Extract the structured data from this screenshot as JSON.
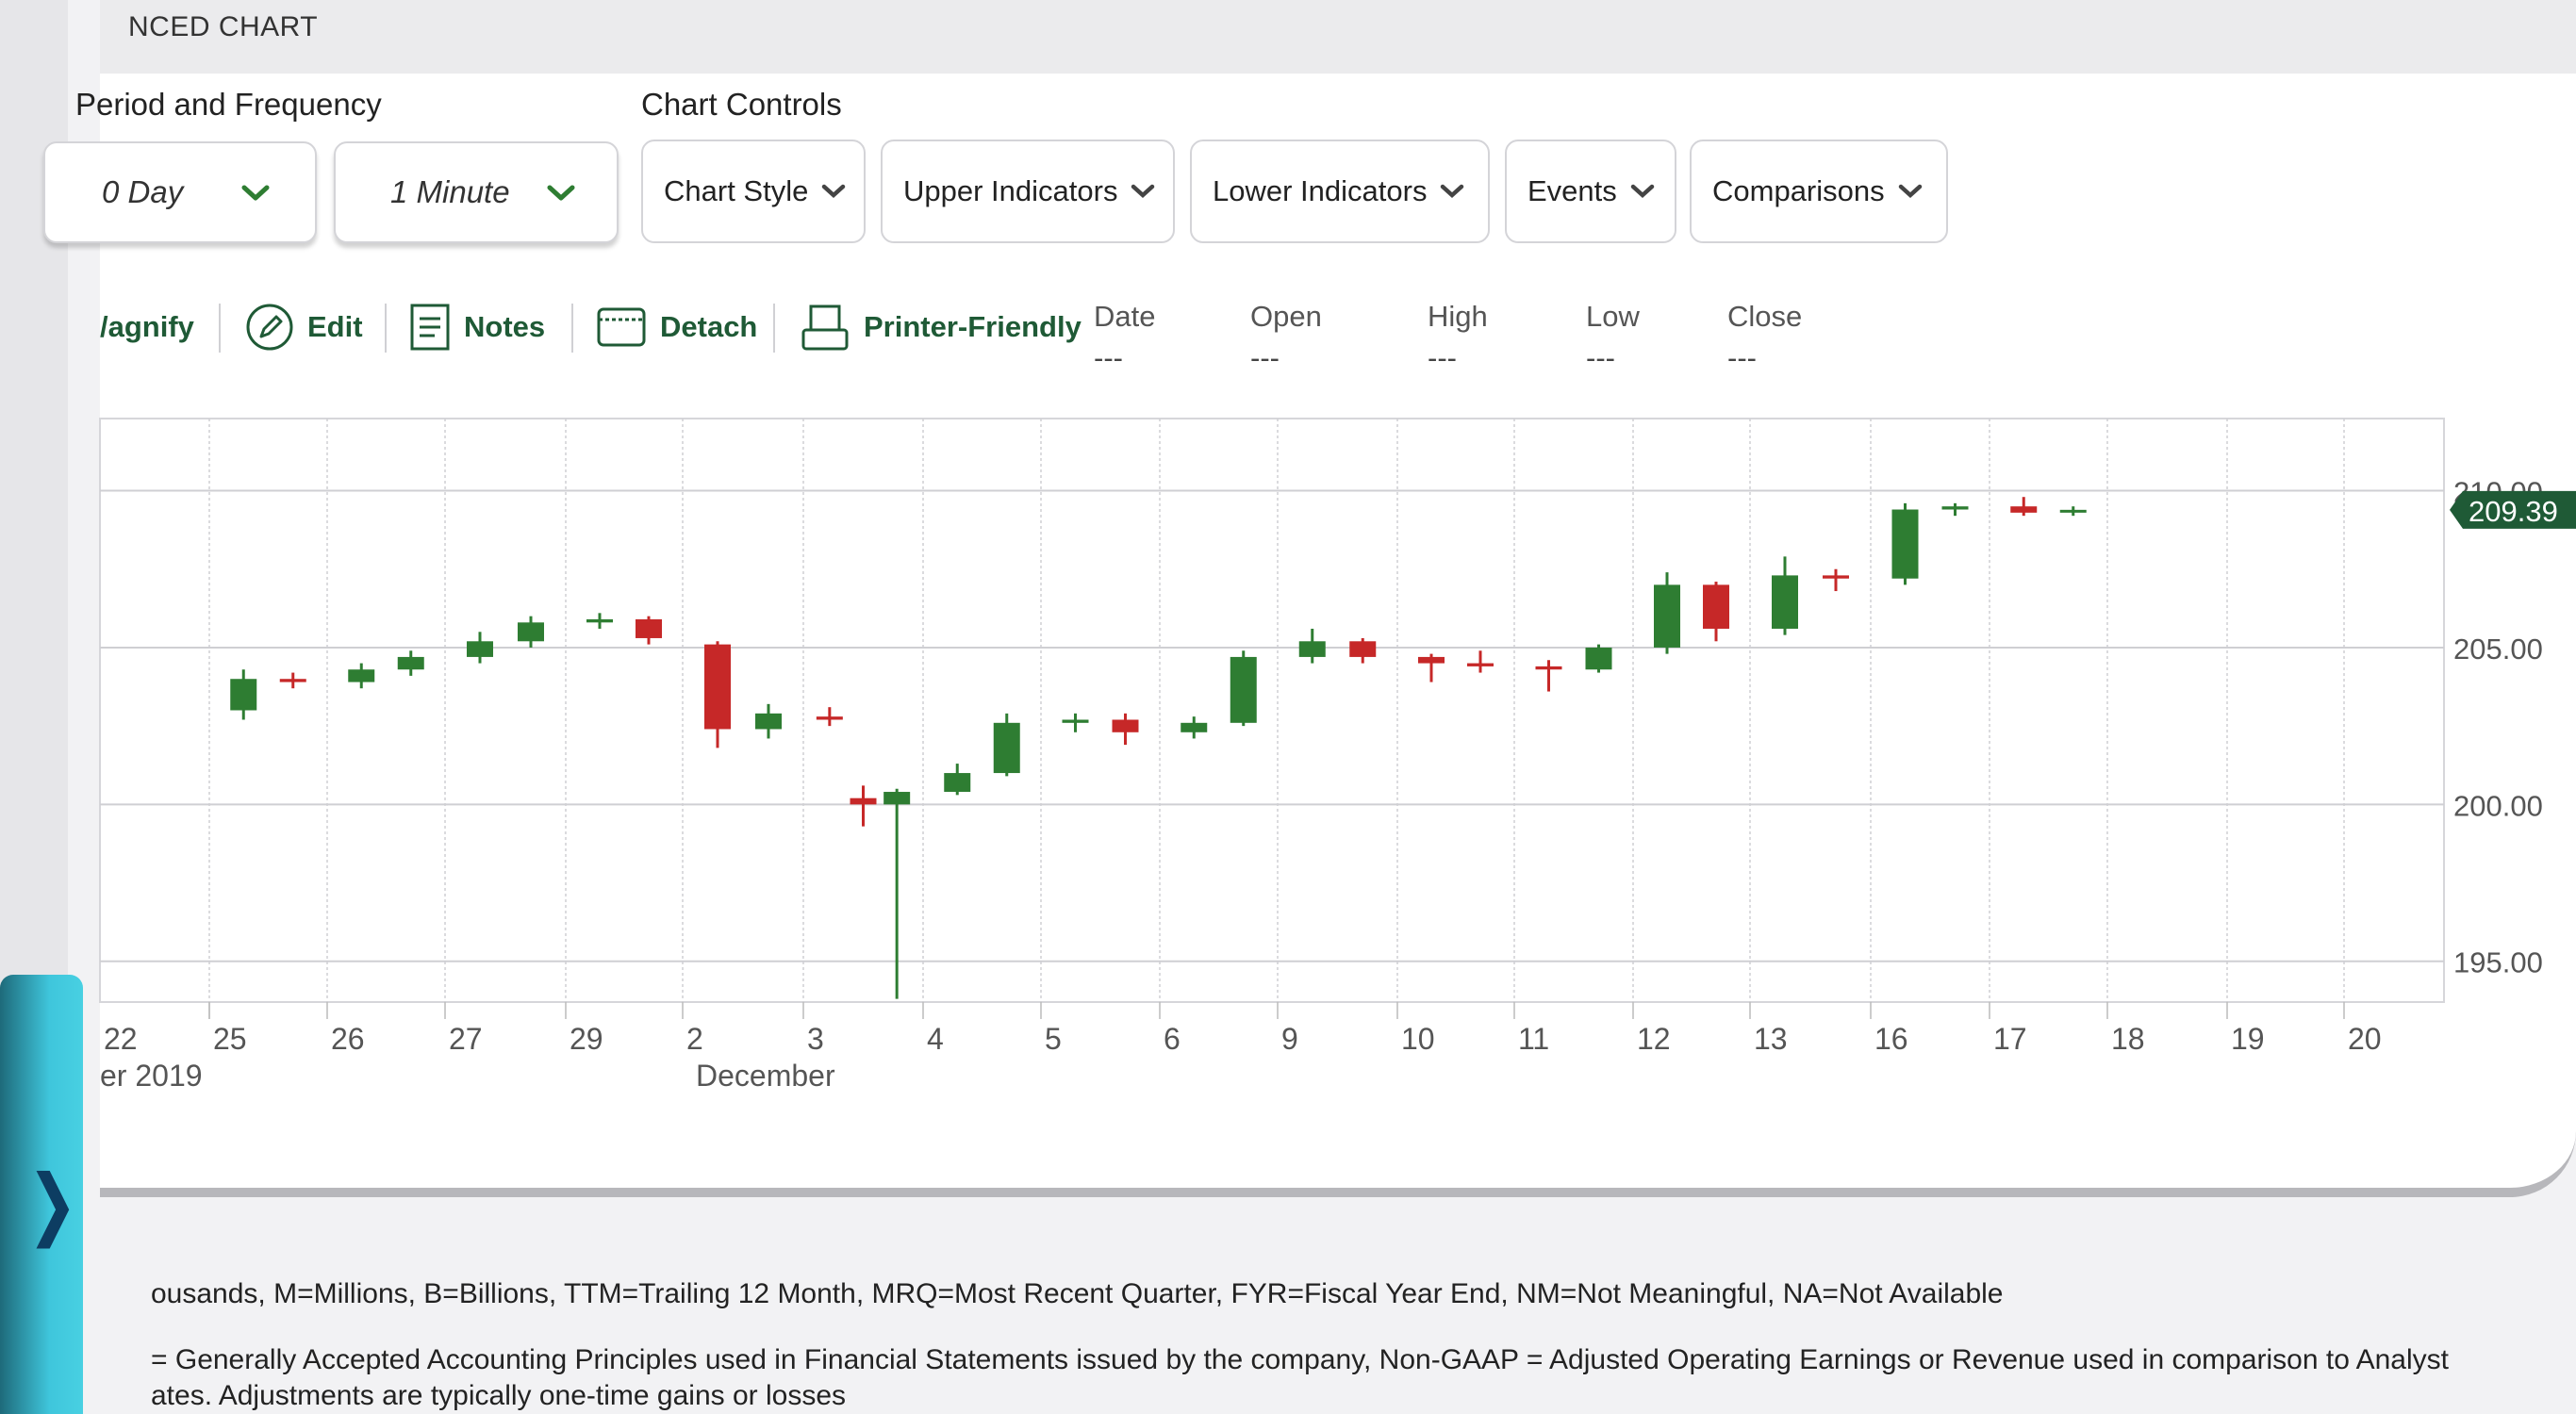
{
  "page": {
    "title": "NCED CHART",
    "period_label": "Period and Frequency",
    "controls_label": "Chart Controls"
  },
  "period": {
    "value": "0 Day"
  },
  "frequency": {
    "value": "1 Minute"
  },
  "controls": [
    {
      "label": "Chart Style"
    },
    {
      "label": "Upper Indicators"
    },
    {
      "label": "Lower Indicators"
    },
    {
      "label": "Events"
    },
    {
      "label": "Comparisons"
    }
  ],
  "toolbar": {
    "magnify": "/agnify",
    "edit": "Edit",
    "notes": "Notes",
    "detach": "Detach",
    "printer": "Printer-Friendly"
  },
  "ohlc": [
    {
      "label": "Date",
      "value": "---"
    },
    {
      "label": "Open",
      "value": "---"
    },
    {
      "label": "High",
      "value": "---"
    },
    {
      "label": "Low",
      "value": "---"
    },
    {
      "label": "Close",
      "value": "---"
    }
  ],
  "chart_data": {
    "type": "candlestick",
    "x_tick_labels": [
      "22",
      "25",
      "26",
      "27",
      "29",
      "2",
      "3",
      "4",
      "5",
      "6",
      "9",
      "10",
      "11",
      "12",
      "13",
      "16",
      "17",
      "18",
      "19",
      "20"
    ],
    "x_sublabels": [
      "er 2019",
      "December"
    ],
    "y_tick_labels": [
      "195.00",
      "200.00",
      "205.00",
      "210.00"
    ],
    "ylim": [
      193.7,
      212.3
    ],
    "last_price_label": "209.39",
    "colors": {
      "up": "#2e7d32",
      "down": "#c62828",
      "last_price_bg": "#1f5a36",
      "grid": "#cfcfd3"
    },
    "series": [
      {
        "name": "",
        "points": [
          {
            "day": "25",
            "o": 203.0,
            "h": 204.3,
            "l": 202.7,
            "c": 204.0
          },
          {
            "day": "25",
            "o": 204.0,
            "h": 204.2,
            "l": 203.7,
            "c": 203.9
          },
          {
            "day": "26",
            "o": 203.9,
            "h": 204.5,
            "l": 203.7,
            "c": 204.3
          },
          {
            "day": "26",
            "o": 204.3,
            "h": 204.9,
            "l": 204.1,
            "c": 204.7
          },
          {
            "day": "27",
            "o": 204.7,
            "h": 205.5,
            "l": 204.5,
            "c": 205.2
          },
          {
            "day": "27",
            "o": 205.2,
            "h": 206.0,
            "l": 205.0,
            "c": 205.8
          },
          {
            "day": "29",
            "o": 205.8,
            "h": 206.1,
            "l": 205.6,
            "c": 205.9
          },
          {
            "day": "29",
            "o": 205.9,
            "h": 206.0,
            "l": 205.1,
            "c": 205.3
          },
          {
            "day": "2",
            "o": 205.1,
            "h": 205.2,
            "l": 201.8,
            "c": 202.4
          },
          {
            "day": "2",
            "o": 202.4,
            "h": 203.2,
            "l": 202.1,
            "c": 202.9
          },
          {
            "day": "3",
            "o": 202.8,
            "h": 203.1,
            "l": 202.5,
            "c": 202.7
          },
          {
            "day": "3",
            "o": 200.2,
            "h": 200.6,
            "l": 199.3,
            "c": 200.0
          },
          {
            "day": "3",
            "o": 200.0,
            "h": 200.5,
            "l": 193.8,
            "c": 200.4
          },
          {
            "day": "4",
            "o": 200.4,
            "h": 201.3,
            "l": 200.3,
            "c": 201.0
          },
          {
            "day": "4",
            "o": 201.0,
            "h": 202.9,
            "l": 200.9,
            "c": 202.6
          },
          {
            "day": "5",
            "o": 202.6,
            "h": 202.9,
            "l": 202.3,
            "c": 202.7
          },
          {
            "day": "5",
            "o": 202.7,
            "h": 202.9,
            "l": 201.9,
            "c": 202.3
          },
          {
            "day": "6",
            "o": 202.3,
            "h": 202.8,
            "l": 202.1,
            "c": 202.6
          },
          {
            "day": "6",
            "o": 202.6,
            "h": 204.9,
            "l": 202.5,
            "c": 204.7
          },
          {
            "day": "9",
            "o": 204.7,
            "h": 205.6,
            "l": 204.5,
            "c": 205.2
          },
          {
            "day": "9",
            "o": 205.2,
            "h": 205.3,
            "l": 204.5,
            "c": 204.7
          },
          {
            "day": "10",
            "o": 204.7,
            "h": 204.8,
            "l": 203.9,
            "c": 204.5
          },
          {
            "day": "10",
            "o": 204.5,
            "h": 204.9,
            "l": 204.2,
            "c": 204.4
          },
          {
            "day": "11",
            "o": 204.4,
            "h": 204.6,
            "l": 203.6,
            "c": 204.3
          },
          {
            "day": "11",
            "o": 204.3,
            "h": 205.1,
            "l": 204.2,
            "c": 205.0
          },
          {
            "day": "12",
            "o": 205.0,
            "h": 207.4,
            "l": 204.8,
            "c": 207.0
          },
          {
            "day": "12",
            "o": 207.0,
            "h": 207.1,
            "l": 205.2,
            "c": 205.6
          },
          {
            "day": "13",
            "o": 205.6,
            "h": 207.9,
            "l": 205.4,
            "c": 207.3
          },
          {
            "day": "13",
            "o": 207.3,
            "h": 207.5,
            "l": 206.8,
            "c": 207.2
          },
          {
            "day": "16",
            "o": 207.2,
            "h": 209.6,
            "l": 207.0,
            "c": 209.4
          },
          {
            "day": "16",
            "o": 209.4,
            "h": 209.6,
            "l": 209.2,
            "c": 209.5
          },
          {
            "day": "17",
            "o": 209.5,
            "h": 209.8,
            "l": 209.2,
            "c": 209.3
          },
          {
            "day": "17",
            "o": 209.3,
            "h": 209.5,
            "l": 209.2,
            "c": 209.39
          }
        ]
      }
    ]
  },
  "footer": {
    "line1": "ousands, M=Millions, B=Billions, TTM=Trailing 12 Month, MRQ=Most Recent Quarter, FYR=Fiscal Year End, NM=Not Meaningful, NA=Not Available",
    "line2": " = Generally Accepted Accounting Principles used in Financial Statements issued by the company, Non-GAAP = Adjusted Operating Earnings or Revenue used in comparison to Analyst",
    "line3": "ates. Adjustments are typically one-time gains or losses"
  },
  "sidetab": {
    "arrow": "❭"
  }
}
